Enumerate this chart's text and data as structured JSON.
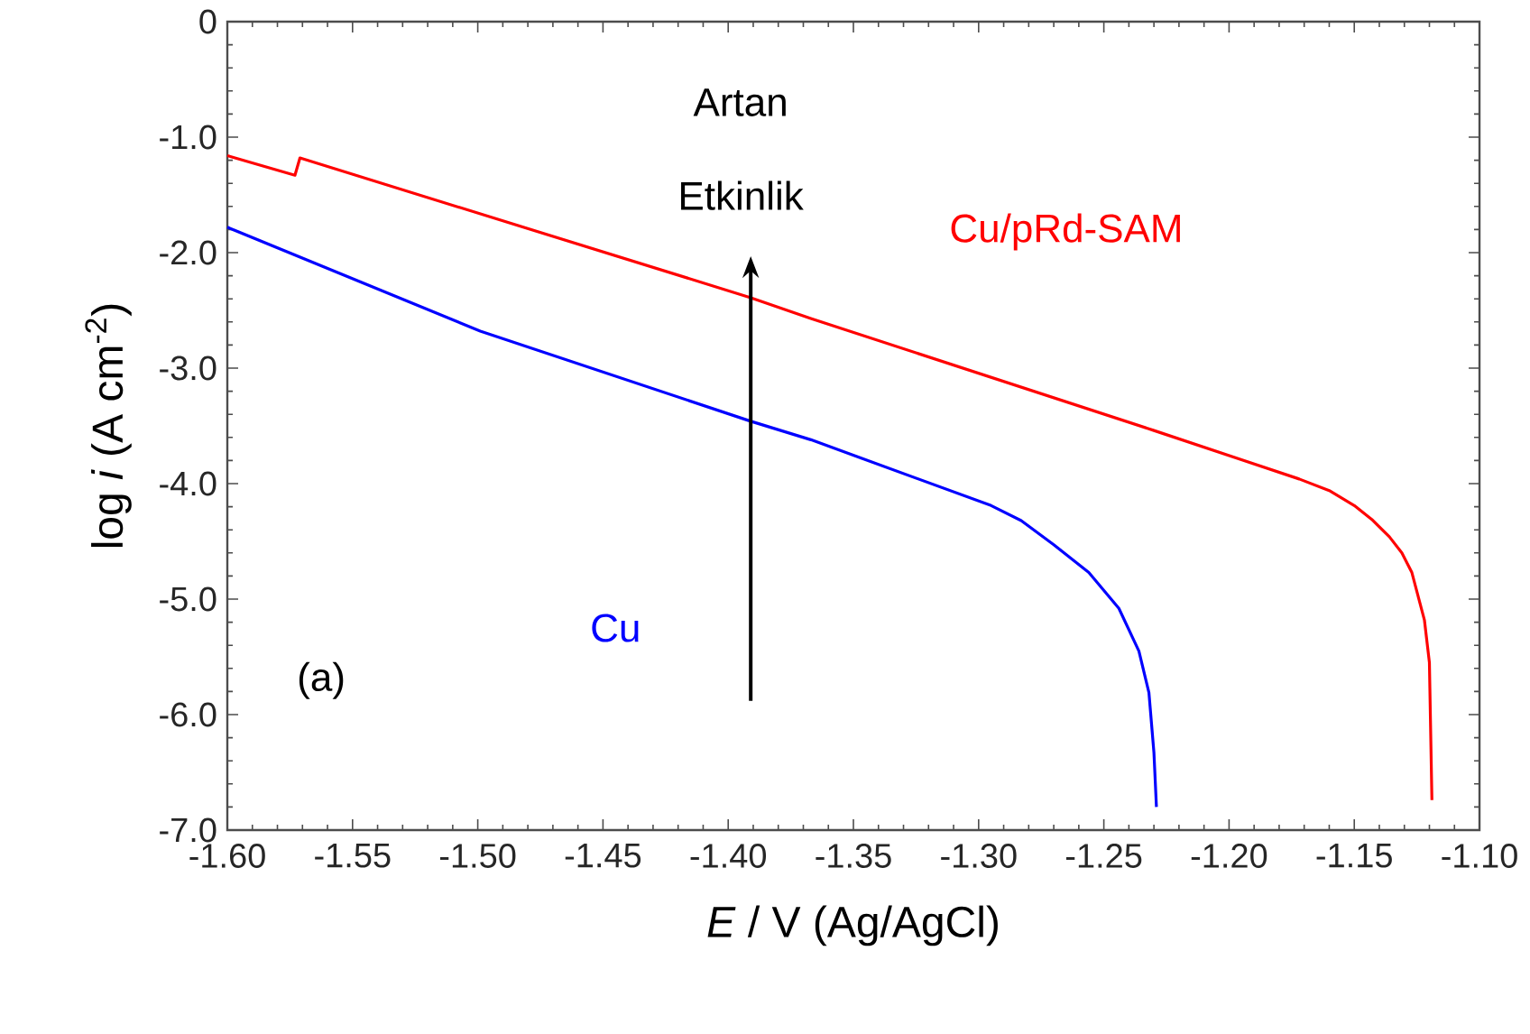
{
  "chart_data": {
    "type": "line",
    "xlabel": "*E* / V (Ag/AgCl)",
    "ylabel": "log *i* (A cm$^{-2}$)",
    "xlim": [
      -1.6,
      -1.1
    ],
    "ylim": [
      -7.0,
      0
    ],
    "xticks": [
      {
        "value": -1.6,
        "label": "-1.60"
      },
      {
        "value": -1.55,
        "label": "-1.55"
      },
      {
        "value": -1.5,
        "label": "-1.50"
      },
      {
        "value": -1.45,
        "label": "-1.45"
      },
      {
        "value": -1.4,
        "label": "-1.40"
      },
      {
        "value": -1.35,
        "label": "-1.35"
      },
      {
        "value": -1.3,
        "label": "-1.30"
      },
      {
        "value": -1.25,
        "label": "-1.25"
      },
      {
        "value": -1.2,
        "label": "-1.20"
      },
      {
        "value": -1.15,
        "label": "-1.15"
      },
      {
        "value": -1.1,
        "label": "-1.10"
      }
    ],
    "yticks": [
      {
        "value": 0,
        "label": "0"
      },
      {
        "value": -1,
        "label": "-1.0"
      },
      {
        "value": -2,
        "label": "-2.0"
      },
      {
        "value": -3,
        "label": "-3.0"
      },
      {
        "value": -4,
        "label": "-4.0"
      },
      {
        "value": -5,
        "label": "-5.0"
      },
      {
        "value": -6,
        "label": "-6.0"
      },
      {
        "value": -7,
        "label": "-7.0"
      }
    ],
    "grid": false,
    "legend": false,
    "marker": "none",
    "line_style": "solid",
    "series": [
      {
        "name": "Cu/pRd-SAM",
        "color": "#ff0000",
        "x": [
          -1.6,
          -1.573,
          -1.571,
          -1.391,
          -1.367,
          -1.23,
          -1.172,
          -1.16,
          -1.15,
          -1.143,
          -1.136,
          -1.131,
          -1.127,
          -1.122,
          -1.12,
          -1.119
        ],
        "values": [
          -1.16,
          -1.33,
          -1.18,
          -2.39,
          -2.57,
          -3.54,
          -3.96,
          -4.06,
          -4.19,
          -4.31,
          -4.46,
          -4.6,
          -4.77,
          -5.18,
          -5.55,
          -6.74
        ]
      },
      {
        "name": "Cu",
        "color": "#0000ff",
        "x": [
          -1.6,
          -1.499,
          -1.391,
          -1.367,
          -1.295,
          -1.283,
          -1.27,
          -1.256,
          -1.244,
          -1.236,
          -1.232,
          -1.23,
          -1.229
        ],
        "values": [
          -1.78,
          -2.68,
          -3.46,
          -3.62,
          -4.19,
          -4.32,
          -4.53,
          -4.77,
          -5.08,
          -5.45,
          -5.81,
          -6.33,
          -6.8
        ]
      }
    ],
    "annotations": [
      "Artan",
      "Etkinlik",
      "(a)"
    ]
  }
}
